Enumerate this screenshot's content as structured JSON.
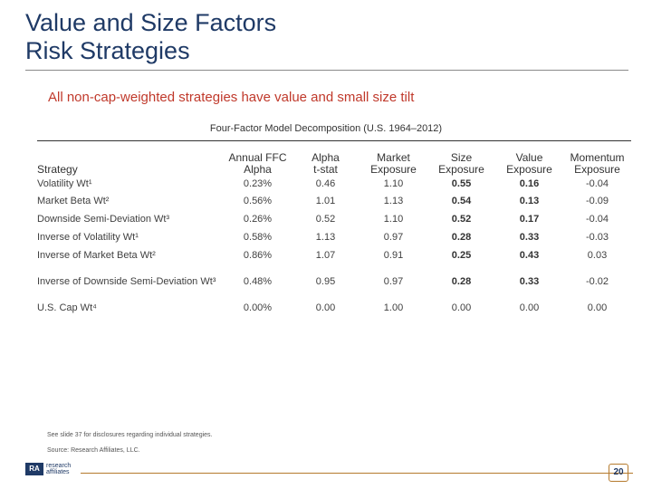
{
  "header": {
    "title_line1": "Value and Size Factors",
    "title_line2": "Risk Strategies",
    "subtitle": "All non-cap-weighted strategies have value and small size tilt"
  },
  "table": {
    "title": "Four-Factor Model Decomposition (U.S. 1964–2012)",
    "columns": [
      {
        "line1": "",
        "line2": "Strategy"
      },
      {
        "line1": "Annual FFC",
        "line2": "Alpha"
      },
      {
        "line1": "Alpha",
        "line2": "t-stat"
      },
      {
        "line1": "Market",
        "line2": "Exposure"
      },
      {
        "line1": "Size",
        "line2": "Exposure"
      },
      {
        "line1": "Value",
        "line2": "Exposure"
      },
      {
        "line1": "Momentum",
        "line2": "Exposure"
      }
    ],
    "rows": [
      {
        "name": "Volatility Wt¹",
        "alpha": "0.23%",
        "tstat": "0.46",
        "market": "1.10",
        "size": "0.55",
        "value": "0.16",
        "momentum": "-0.04"
      },
      {
        "name": "Market Beta Wt²",
        "alpha": "0.56%",
        "tstat": "1.01",
        "market": "1.13",
        "size": "0.54",
        "value": "0.13",
        "momentum": "-0.09"
      },
      {
        "name": "Downside Semi-Deviation Wt³",
        "alpha": "0.26%",
        "tstat": "0.52",
        "market": "1.10",
        "size": "0.52",
        "value": "0.17",
        "momentum": "-0.04"
      },
      {
        "name": "Inverse of Volatility Wt¹",
        "alpha": "0.58%",
        "tstat": "1.13",
        "market": "0.97",
        "size": "0.28",
        "value": "0.33",
        "momentum": "-0.03"
      },
      {
        "name": "Inverse of Market Beta Wt²",
        "alpha": "0.86%",
        "tstat": "1.07",
        "market": "0.91",
        "size": "0.25",
        "value": "0.43",
        "momentum": "0.03"
      },
      {
        "name": "Inverse of  Downside Semi-Deviation Wt³",
        "alpha": "0.48%",
        "tstat": "0.95",
        "market": "0.97",
        "size": "0.28",
        "value": "0.33",
        "momentum": "-0.02"
      },
      {
        "name": "U.S. Cap Wt⁴",
        "alpha": "0.00%",
        "tstat": "0.00",
        "market": "1.00",
        "size": "0.00",
        "value": "0.00",
        "momentum": "0.00"
      }
    ]
  },
  "footer": {
    "disclosure": "See slide 37 for disclosures regarding individual strategies.",
    "source": "Source: Research Affiliates, LLC.",
    "logo_mark": "RA",
    "logo_line1": "research",
    "logo_line2": "affiliates",
    "page_number": "20"
  },
  "colors": {
    "title": "#1f3a66",
    "subtitle": "#c0392b",
    "accent_rule": "#b57a2d"
  }
}
